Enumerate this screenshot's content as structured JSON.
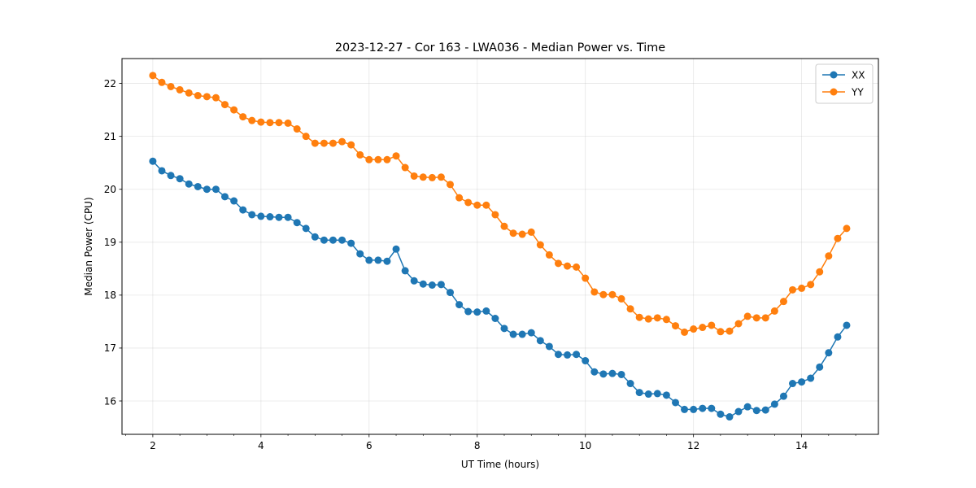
{
  "chart_data": {
    "type": "line",
    "title": "2023-12-27 - Cor 163 - LWA036 - Median Power vs. Time",
    "xlabel": "UT Time (hours)",
    "ylabel": "Median Power (CPU)",
    "xlim": [
      1.43,
      15.42
    ],
    "ylim": [
      15.37,
      22.47
    ],
    "x_ticks": [
      2,
      4,
      6,
      8,
      10,
      12,
      14
    ],
    "x_tick_labels": [
      "2",
      "4",
      "6",
      "8",
      "10",
      "12",
      "14"
    ],
    "y_ticks": [
      16,
      17,
      18,
      19,
      20,
      21,
      22
    ],
    "y_tick_labels": [
      "16",
      "17",
      "18",
      "19",
      "20",
      "21",
      "22"
    ],
    "grid": true,
    "legend_position": "top-right",
    "x": [
      2.0,
      2.167,
      2.333,
      2.5,
      2.667,
      2.833,
      3.0,
      3.167,
      3.333,
      3.5,
      3.667,
      3.833,
      4.0,
      4.167,
      4.333,
      4.5,
      4.667,
      4.833,
      5.0,
      5.167,
      5.333,
      5.5,
      5.667,
      5.833,
      6.0,
      6.167,
      6.333,
      6.5,
      6.667,
      6.833,
      7.0,
      7.167,
      7.333,
      7.5,
      7.667,
      7.833,
      8.0,
      8.167,
      8.333,
      8.5,
      8.667,
      8.833,
      9.0,
      9.167,
      9.333,
      9.5,
      9.667,
      9.833,
      10.0,
      10.167,
      10.333,
      10.5,
      10.667,
      10.833,
      11.0,
      11.167,
      11.333,
      11.5,
      11.667,
      11.833,
      12.0,
      12.167,
      12.333,
      12.5,
      12.667,
      12.833,
      13.0,
      13.167,
      13.333,
      13.5,
      13.667,
      13.833,
      14.0,
      14.167,
      14.333,
      14.5,
      14.667,
      14.833
    ],
    "series": [
      {
        "name": "XX",
        "color": "#1f77b4",
        "values": [
          20.53,
          20.35,
          20.26,
          20.2,
          20.1,
          20.05,
          20.0,
          20.0,
          19.86,
          19.78,
          19.61,
          19.52,
          19.49,
          19.48,
          19.47,
          19.47,
          19.37,
          19.26,
          19.1,
          19.04,
          19.04,
          19.04,
          18.98,
          18.78,
          18.66,
          18.66,
          18.64,
          18.87,
          18.46,
          18.27,
          18.21,
          18.19,
          18.2,
          18.05,
          17.82,
          17.69,
          17.68,
          17.7,
          17.56,
          17.37,
          17.26,
          17.26,
          17.29,
          17.14,
          17.03,
          16.88,
          16.87,
          16.88,
          16.76,
          16.55,
          16.51,
          16.52,
          16.5,
          16.33,
          16.16,
          16.13,
          16.14,
          16.11,
          15.97,
          15.84,
          15.84,
          15.86,
          15.86,
          15.75,
          15.7,
          15.8,
          15.89,
          15.82,
          15.83,
          15.94,
          16.09,
          16.33,
          16.36,
          16.43,
          16.64,
          16.91,
          17.21,
          17.43
        ]
      },
      {
        "name": "YY",
        "color": "#ff7f0e",
        "values": [
          22.15,
          22.02,
          21.94,
          21.88,
          21.82,
          21.77,
          21.75,
          21.73,
          21.6,
          21.5,
          21.37,
          21.3,
          21.27,
          21.26,
          21.26,
          21.25,
          21.14,
          21.0,
          20.87,
          20.87,
          20.87,
          20.9,
          20.84,
          20.65,
          20.56,
          20.56,
          20.56,
          20.63,
          20.41,
          20.25,
          20.23,
          20.22,
          20.23,
          20.09,
          19.84,
          19.75,
          19.7,
          19.7,
          19.52,
          19.3,
          19.17,
          19.15,
          19.19,
          18.95,
          18.76,
          18.6,
          18.55,
          18.53,
          18.32,
          18.06,
          18.01,
          18.01,
          17.93,
          17.74,
          17.58,
          17.55,
          17.57,
          17.54,
          17.42,
          17.3,
          17.36,
          17.39,
          17.43,
          17.31,
          17.32,
          17.46,
          17.6,
          17.57,
          17.57,
          17.7,
          17.88,
          18.1,
          18.13,
          18.2,
          18.44,
          18.74,
          19.07,
          19.26
        ]
      }
    ]
  }
}
